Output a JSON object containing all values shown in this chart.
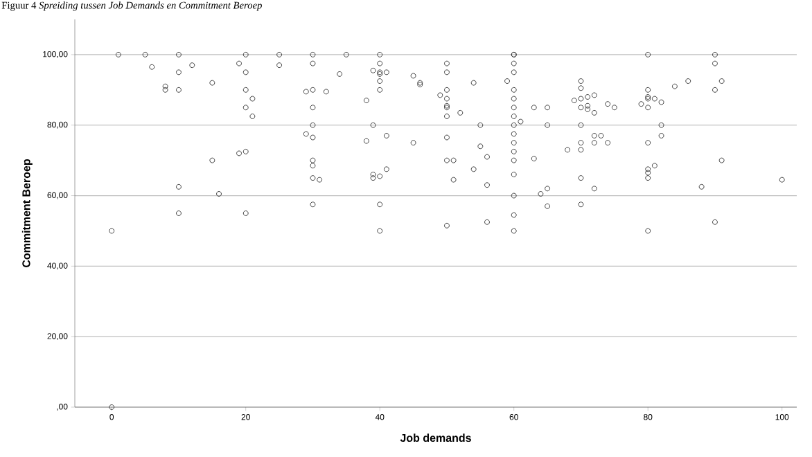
{
  "chart_data": {
    "type": "scatter",
    "title": "Figuur 4 *Spreiding tussen Job Demands en Commitment Beroep*",
    "xlabel": "Job demands",
    "ylabel": "Commitment Beroep",
    "xlim": [
      -5.5,
      102.2
    ],
    "ylim": [
      0,
      110
    ],
    "xticks": [
      0,
      20,
      40,
      60,
      80,
      100
    ],
    "yticks": [
      {
        "value": 0,
        "label": ",00"
      },
      {
        "value": 20,
        "label": "20,00"
      },
      {
        "value": 40,
        "label": "40,00"
      },
      {
        "value": 60,
        "label": "60,00"
      },
      {
        "value": 80,
        "label": "80,00"
      },
      {
        "value": 100,
        "label": "100,00"
      }
    ],
    "grid": "y",
    "marker": "circle",
    "color": "#333333",
    "x": [
      0,
      0,
      1,
      5,
      10,
      20,
      25,
      6,
      12,
      25,
      19,
      10,
      20,
      15,
      8,
      8,
      10,
      20,
      21,
      20,
      21,
      15,
      19,
      20,
      10,
      16,
      10,
      20,
      30,
      30,
      35,
      40,
      40,
      34,
      39,
      40,
      40,
      41,
      40,
      40,
      45,
      46,
      46,
      50,
      50,
      54,
      29,
      30,
      32,
      30,
      38,
      50,
      49,
      50,
      50,
      50,
      52,
      50,
      30,
      39,
      55,
      29,
      30,
      38,
      41,
      45,
      50,
      55,
      56,
      30,
      30,
      50,
      51,
      54,
      39,
      39,
      40,
      41,
      30,
      31,
      51,
      56,
      30,
      40,
      50,
      56,
      40,
      60,
      60,
      60,
      60,
      60,
      60,
      60,
      60,
      60,
      60,
      60,
      60,
      60,
      60,
      60,
      60,
      60,
      59,
      61,
      63,
      65,
      65,
      63,
      64,
      65,
      65,
      70,
      70,
      69,
      70,
      71,
      72,
      70,
      71,
      71,
      72,
      74,
      75,
      70,
      72,
      73,
      72,
      74,
      70,
      70,
      68,
      70,
      72,
      70,
      80,
      80,
      80,
      80,
      81,
      79,
      80,
      82,
      82,
      82,
      80,
      81,
      80,
      80,
      80,
      80,
      84,
      86,
      90,
      90,
      91,
      90,
      91,
      88,
      100,
      90
    ],
    "values": [
      0,
      50,
      100,
      100,
      100,
      100,
      100,
      96.5,
      97,
      97,
      97.5,
      95,
      95,
      92,
      91,
      90,
      90,
      90,
      87.5,
      85,
      82.5,
      70,
      72,
      72.5,
      62.5,
      60.5,
      55,
      55,
      100,
      97.5,
      100,
      100,
      97.5,
      94.5,
      95.5,
      95,
      94.5,
      95,
      92.5,
      90,
      94,
      92,
      91.5,
      97.5,
      95,
      92,
      89.5,
      90,
      89.5,
      85,
      87,
      90,
      88.5,
      87.5,
      85.5,
      85,
      83.5,
      82.5,
      80,
      80,
      80,
      77.5,
      76.5,
      75.5,
      77,
      75,
      76.5,
      74,
      71,
      70,
      68.5,
      70,
      70,
      67.5,
      66,
      65,
      65.5,
      67.5,
      65,
      64.5,
      64.5,
      63,
      57.5,
      57.5,
      51.5,
      52.5,
      50,
      100,
      100,
      97.5,
      95,
      90,
      87.5,
      85,
      82.5,
      80,
      77.5,
      75,
      72.5,
      70,
      66,
      60,
      54.5,
      50,
      92.5,
      81,
      85,
      85,
      80,
      70.5,
      60.5,
      62,
      57,
      92.5,
      90.5,
      87,
      87.5,
      88,
      88.5,
      85,
      85.5,
      84.5,
      83.5,
      86,
      85,
      80,
      77,
      77,
      75,
      75,
      75,
      73,
      73,
      65,
      62,
      57.5,
      100,
      90,
      88,
      87.5,
      87.5,
      86,
      85,
      86.5,
      80,
      77,
      75,
      68.5,
      67.5,
      66.5,
      65,
      50,
      91,
      92.5,
      100,
      97.5,
      92.5,
      90,
      70,
      62.5,
      64.5,
      52.5
    ]
  }
}
